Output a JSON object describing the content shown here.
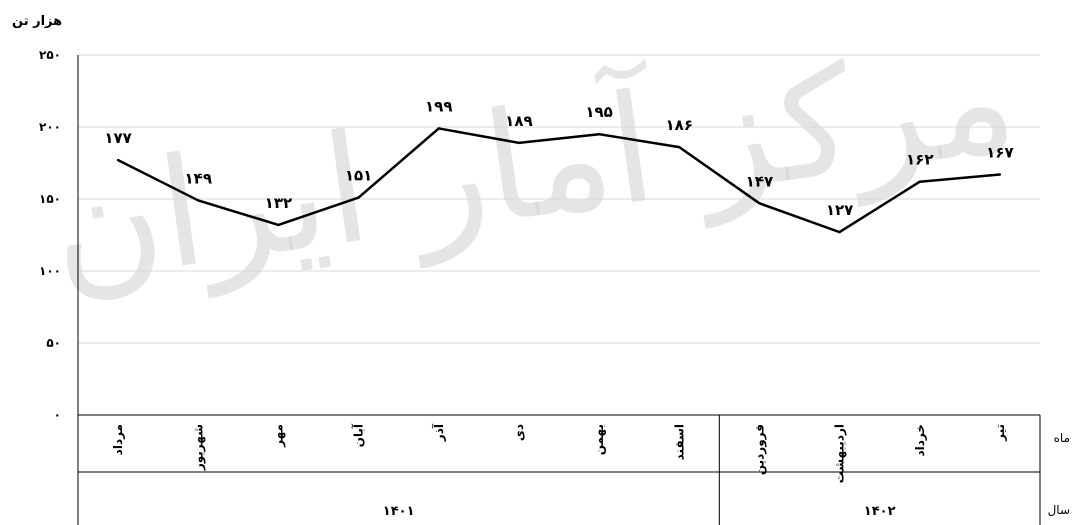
{
  "chart_data": {
    "type": "line",
    "title": "",
    "ylabel": "هزار تن",
    "ylim": [
      0,
      250
    ],
    "yticks": [
      "۰",
      "۵۰",
      "۱۰۰",
      "۱۵۰",
      "۲۰۰",
      "۲۵۰"
    ],
    "grid": true,
    "categories": [
      "مرداد",
      "شهریور",
      "مهر",
      "آبان",
      "آذر",
      "دی",
      "بهمن",
      "اسفند",
      "فروردین",
      "اردیبهشت",
      "خرداد",
      "تیر"
    ],
    "values": [
      177,
      149,
      132,
      151,
      199,
      189,
      195,
      186,
      147,
      127,
      162,
      167
    ],
    "value_labels": [
      "۱۷۷",
      "۱۴۹",
      "۱۳۲",
      "۱۵۱",
      "۱۹۹",
      "۱۸۹",
      "۱۹۵",
      "۱۸۶",
      "۱۴۷",
      "۱۲۷",
      "۱۶۲",
      "۱۶۷"
    ],
    "row_labels": {
      "month": "ماه",
      "year": "سال"
    },
    "year_groups": [
      {
        "label": "۱۴۰۱",
        "count": 8
      },
      {
        "label": "۱۴۰۲",
        "count": 4
      }
    ],
    "line_color": "#000000",
    "grid_color": "#d9d9d9"
  },
  "watermark": "مرکز آمار ایران"
}
